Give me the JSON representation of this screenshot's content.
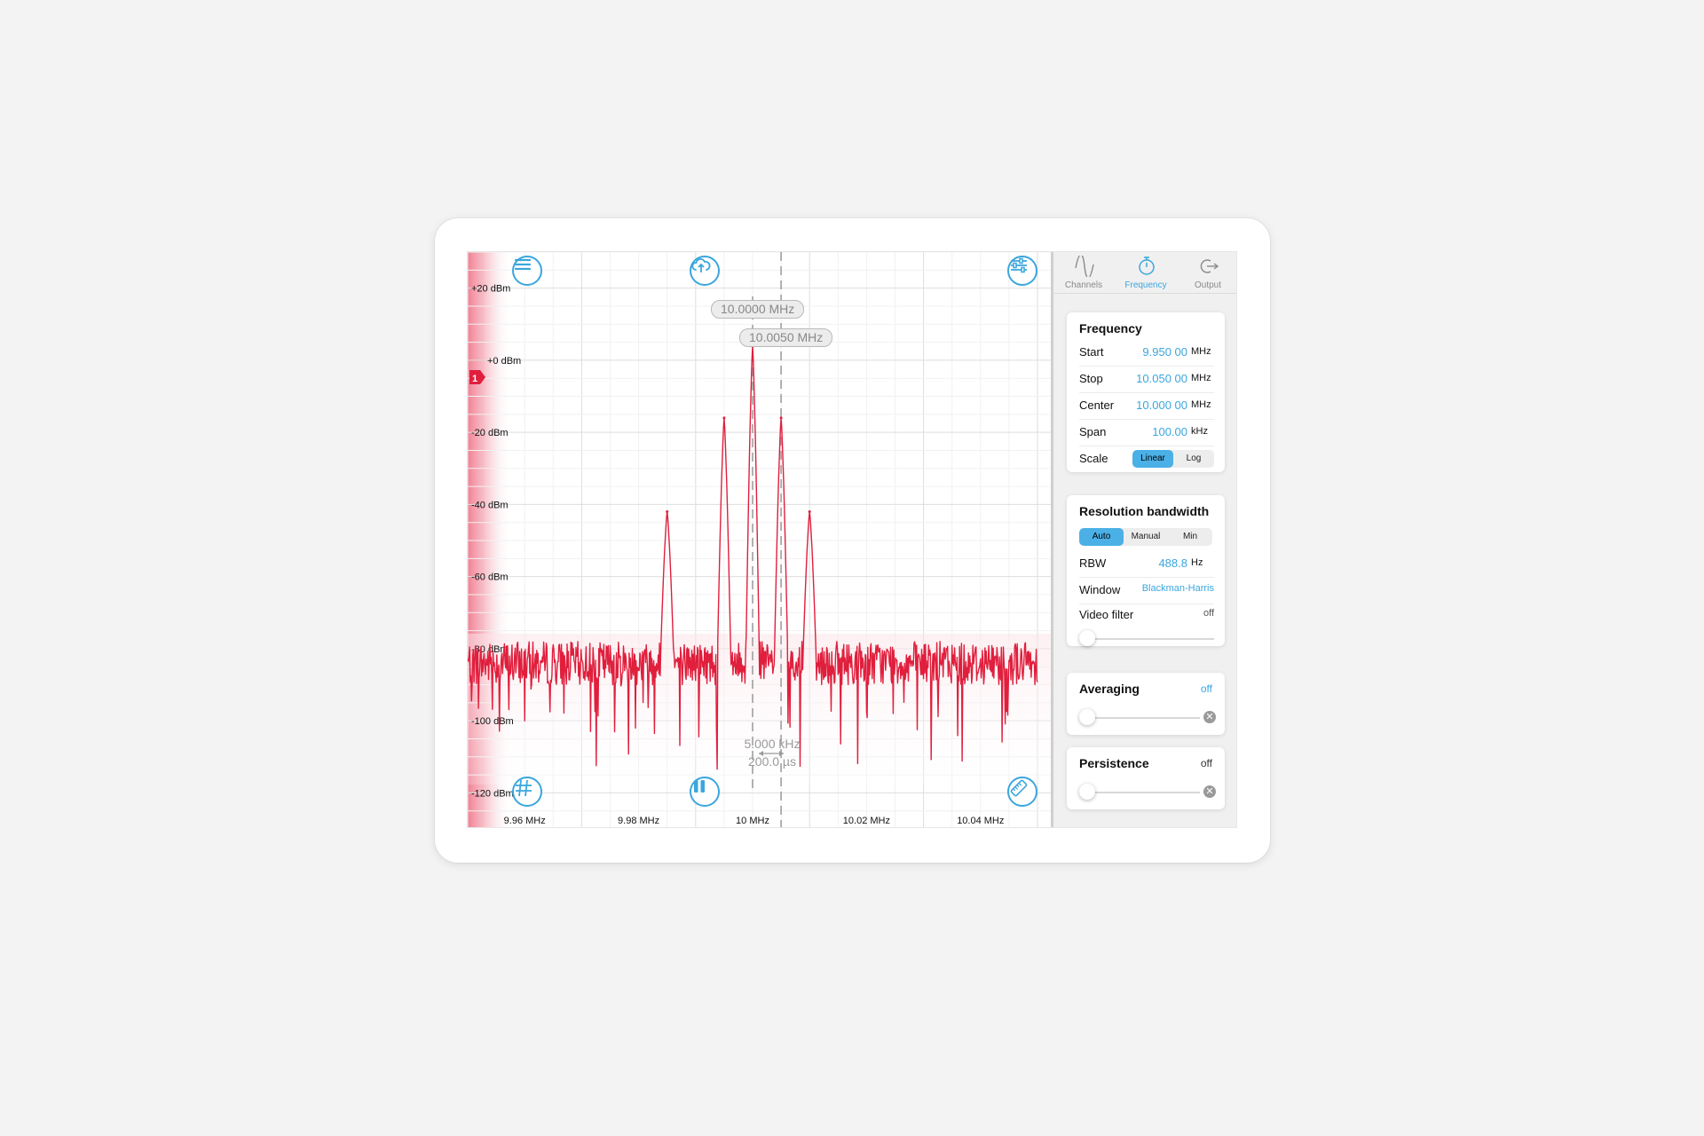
{
  "chart_data": {
    "type": "line",
    "x_ticks": [
      "9.96 MHz",
      "9.98 MHz",
      "10 MHz",
      "10.02 MHz",
      "10.04 MHz"
    ],
    "y_ticks": [
      "+20 dBm",
      "+0 dBm",
      "-20 dBm",
      "-40 dBm",
      "-60 dBm",
      "-80 dBm",
      "-100 dBm",
      "-120 dBm"
    ],
    "x_range_mhz": [
      9.95,
      10.05
    ],
    "y_range_dbm": [
      -130,
      30
    ],
    "peaks": [
      {
        "freq_mhz": 9.985,
        "level_dbm": -42
      },
      {
        "freq_mhz": 9.995,
        "level_dbm": -16
      },
      {
        "freq_mhz": 10.0,
        "level_dbm": 4
      },
      {
        "freq_mhz": 10.005,
        "level_dbm": -16
      },
      {
        "freq_mhz": 10.01,
        "level_dbm": -42
      }
    ],
    "noise_floor_dbm": -84,
    "trace_color": "#e01f3d",
    "reference_marker": "1"
  },
  "markers": {
    "marker1": "10.0000 MHz",
    "marker2": "10.0050 MHz",
    "delta_freq": "5.000 kHz",
    "delta_time": "200.0 µs"
  },
  "tabs": [
    {
      "label": "Channels",
      "icon": "sine-wave-icon"
    },
    {
      "label": "Frequency",
      "icon": "stopwatch-icon"
    },
    {
      "label": "Output",
      "icon": "output-icon"
    }
  ],
  "frequency": {
    "title": "Frequency",
    "start": {
      "label": "Start",
      "value": "9.950 00",
      "unit": "MHz"
    },
    "stop": {
      "label": "Stop",
      "value": "10.050 00",
      "unit": "MHz"
    },
    "center": {
      "label": "Center",
      "value": "10.000 00",
      "unit": "MHz"
    },
    "span": {
      "label": "Span",
      "value": "100.00",
      "unit": "kHz"
    },
    "scale": {
      "label": "Scale",
      "options": [
        "Linear",
        "Log"
      ],
      "selected": "Linear"
    }
  },
  "rbw": {
    "title": "Resolution bandwidth",
    "modes": [
      "Auto",
      "Manual",
      "Min"
    ],
    "selected": "Auto",
    "rbw_label": "RBW",
    "rbw_value": "488.8",
    "rbw_unit": "Hz",
    "window_label": "Window",
    "window_value": "Blackman-Harris",
    "video_filter_label": "Video filter",
    "video_filter_value": "off"
  },
  "averaging": {
    "title": "Averaging",
    "value": "off"
  },
  "persistence": {
    "title": "Persistence",
    "value": "off"
  },
  "colors": {
    "accent": "#3aa6dd",
    "trace": "#e01f3d"
  }
}
